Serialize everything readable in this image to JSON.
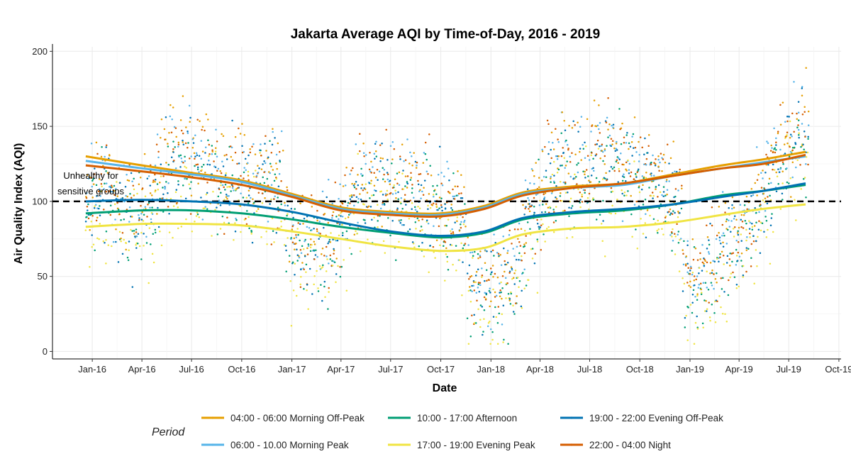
{
  "chart_data": {
    "type": "scatter",
    "title": "Jakarta Average AQI by Time-of-Day, 2016 - 2019",
    "xlabel": "Date",
    "ylabel": "Air Quality Index (AQI)",
    "xlim": [
      "2015-10-20",
      "2019-10-05"
    ],
    "ylim": [
      -5,
      203
    ],
    "x_ticks": [
      {
        "date": "2016-01-01",
        "label": "Jan-16"
      },
      {
        "date": "2016-04-01",
        "label": "Apr-16"
      },
      {
        "date": "2016-07-01",
        "label": "Jul-16"
      },
      {
        "date": "2016-10-01",
        "label": "Oct-16"
      },
      {
        "date": "2017-01-01",
        "label": "Jan-17"
      },
      {
        "date": "2017-04-01",
        "label": "Apr-17"
      },
      {
        "date": "2017-07-01",
        "label": "Jul-17"
      },
      {
        "date": "2017-10-01",
        "label": "Oct-17"
      },
      {
        "date": "2018-01-01",
        "label": "Jan-18"
      },
      {
        "date": "2018-04-01",
        "label": "Apr-18"
      },
      {
        "date": "2018-07-01",
        "label": "Jul-18"
      },
      {
        "date": "2018-10-01",
        "label": "Oct-18"
      },
      {
        "date": "2019-01-01",
        "label": "Jan-19"
      },
      {
        "date": "2019-04-01",
        "label": "Apr-19"
      },
      {
        "date": "2019-07-01",
        "label": "Jul-19"
      },
      {
        "date": "2019-10-01",
        "label": "Oct-19"
      }
    ],
    "y_ticks": [
      0,
      50,
      100,
      150,
      200
    ],
    "grid": true,
    "reference_line": {
      "y": 100,
      "style": "dashed",
      "label": "Unhealthy for sensitive groups"
    },
    "legend": {
      "title": "Period",
      "position": "bottom"
    },
    "series": [
      {
        "name": "04:00 - 06:00 Morning Off-Peak",
        "color": "#E69F00",
        "trend": [
          [
            "2015-12-20",
            130
          ],
          [
            "2016-04-01",
            124
          ],
          [
            "2016-07-01",
            119
          ],
          [
            "2016-10-01",
            114
          ],
          [
            "2017-01-01",
            105
          ],
          [
            "2017-04-01",
            96
          ],
          [
            "2017-07-01",
            93
          ],
          [
            "2017-10-01",
            92
          ],
          [
            "2017-12-20",
            97
          ],
          [
            "2018-03-01",
            106
          ],
          [
            "2018-06-01",
            110
          ],
          [
            "2018-09-01",
            112
          ],
          [
            "2018-12-01",
            118
          ],
          [
            "2019-03-01",
            124
          ],
          [
            "2019-05-15",
            128
          ],
          [
            "2019-08-01",
            133
          ]
        ]
      },
      {
        "name": "06:00 - 10.00 Morning Peak",
        "color": "#56B4E9",
        "trend": [
          [
            "2015-12-20",
            127
          ],
          [
            "2016-04-01",
            122
          ],
          [
            "2016-07-01",
            118
          ],
          [
            "2016-10-01",
            113
          ],
          [
            "2017-01-01",
            104
          ],
          [
            "2017-04-01",
            95
          ],
          [
            "2017-07-01",
            92
          ],
          [
            "2017-10-01",
            91
          ],
          [
            "2017-12-20",
            96
          ],
          [
            "2018-03-01",
            105
          ],
          [
            "2018-06-01",
            109
          ],
          [
            "2018-09-01",
            111
          ],
          [
            "2018-12-01",
            117
          ],
          [
            "2019-03-01",
            122
          ],
          [
            "2019-05-15",
            126
          ],
          [
            "2019-08-01",
            130
          ]
        ]
      },
      {
        "name": "10:00 - 17:00 Afternoon",
        "color": "#009E73",
        "trend": [
          [
            "2015-12-20",
            92
          ],
          [
            "2016-04-01",
            94
          ],
          [
            "2016-07-01",
            94
          ],
          [
            "2016-10-01",
            92
          ],
          [
            "2017-01-01",
            88
          ],
          [
            "2017-04-01",
            83
          ],
          [
            "2017-07-01",
            79
          ],
          [
            "2017-10-01",
            76
          ],
          [
            "2017-12-20",
            79
          ],
          [
            "2018-03-01",
            88
          ],
          [
            "2018-06-01",
            92
          ],
          [
            "2018-09-01",
            94
          ],
          [
            "2018-12-01",
            98
          ],
          [
            "2019-03-01",
            104
          ],
          [
            "2019-05-15",
            107
          ],
          [
            "2019-08-01",
            111
          ]
        ]
      },
      {
        "name": "17:00 - 19:00 Evening Peak",
        "color": "#F0E442",
        "trend": [
          [
            "2015-12-20",
            83
          ],
          [
            "2016-04-01",
            85
          ],
          [
            "2016-07-01",
            85
          ],
          [
            "2016-10-01",
            84
          ],
          [
            "2017-01-01",
            80
          ],
          [
            "2017-04-01",
            75
          ],
          [
            "2017-07-01",
            70
          ],
          [
            "2017-10-01",
            67
          ],
          [
            "2017-12-20",
            69
          ],
          [
            "2018-03-01",
            78
          ],
          [
            "2018-06-01",
            82
          ],
          [
            "2018-09-01",
            83
          ],
          [
            "2018-12-01",
            86
          ],
          [
            "2019-03-01",
            91
          ],
          [
            "2019-05-15",
            95
          ],
          [
            "2019-08-01",
            98
          ]
        ]
      },
      {
        "name": "19:00 - 22:00 Evening Off-Peak",
        "color": "#0072B2",
        "trend": [
          [
            "2015-12-20",
            100
          ],
          [
            "2016-04-01",
            101
          ],
          [
            "2016-07-01",
            100
          ],
          [
            "2016-10-01",
            98
          ],
          [
            "2017-01-01",
            93
          ],
          [
            "2017-04-01",
            86
          ],
          [
            "2017-07-01",
            80
          ],
          [
            "2017-10-01",
            77
          ],
          [
            "2017-12-20",
            80
          ],
          [
            "2018-03-01",
            89
          ],
          [
            "2018-06-01",
            93
          ],
          [
            "2018-09-01",
            95
          ],
          [
            "2018-12-01",
            98
          ],
          [
            "2019-03-01",
            103
          ],
          [
            "2019-05-15",
            107
          ],
          [
            "2019-08-01",
            112
          ]
        ]
      },
      {
        "name": "22:00 - 04:00 Night",
        "color": "#D55E00",
        "trend": [
          [
            "2015-12-20",
            124
          ],
          [
            "2016-04-01",
            120
          ],
          [
            "2016-07-01",
            116
          ],
          [
            "2016-10-01",
            111
          ],
          [
            "2017-01-01",
            103
          ],
          [
            "2017-04-01",
            94
          ],
          [
            "2017-07-01",
            91
          ],
          [
            "2017-10-01",
            90
          ],
          [
            "2017-12-20",
            95
          ],
          [
            "2018-03-01",
            104
          ],
          [
            "2018-06-01",
            109
          ],
          [
            "2018-09-01",
            112
          ],
          [
            "2018-12-01",
            117
          ],
          [
            "2019-03-01",
            122
          ],
          [
            "2019-05-15",
            125
          ],
          [
            "2019-08-01",
            131
          ]
        ]
      }
    ],
    "segments": [
      [
        "2015-12-20",
        "2016-12-15"
      ],
      [
        "2016-12-20",
        "2017-11-15"
      ],
      [
        "2017-11-20",
        "2018-12-15"
      ],
      [
        "2018-12-20",
        "2019-08-05"
      ]
    ],
    "monthly_center": [
      [
        "2015-12-20",
        100
      ],
      [
        "2016-01-15",
        110
      ],
      [
        "2016-02-15",
        95
      ],
      [
        "2016-03-15",
        90
      ],
      [
        "2016-04-15",
        100
      ],
      [
        "2016-05-15",
        120
      ],
      [
        "2016-06-15",
        130
      ],
      [
        "2016-07-15",
        125
      ],
      [
        "2016-08-15",
        120
      ],
      [
        "2016-09-15",
        115
      ],
      [
        "2016-10-15",
        110
      ],
      [
        "2016-11-15",
        120
      ],
      [
        "2016-12-15",
        110
      ],
      [
        "2016-12-20",
        85
      ],
      [
        "2017-01-15",
        70
      ],
      [
        "2017-02-15",
        75
      ],
      [
        "2017-03-15",
        70
      ],
      [
        "2017-04-15",
        95
      ],
      [
        "2017-05-15",
        110
      ],
      [
        "2017-06-15",
        115
      ],
      [
        "2017-07-15",
        105
      ],
      [
        "2017-08-15",
        110
      ],
      [
        "2017-09-15",
        100
      ],
      [
        "2017-10-15",
        95
      ],
      [
        "2017-11-15",
        85
      ],
      [
        "2017-11-20",
        50
      ],
      [
        "2017-12-15",
        45
      ],
      [
        "2018-01-15",
        45
      ],
      [
        "2018-02-15",
        60
      ],
      [
        "2018-03-15",
        90
      ],
      [
        "2018-04-15",
        115
      ],
      [
        "2018-05-15",
        125
      ],
      [
        "2018-06-15",
        125
      ],
      [
        "2018-07-15",
        130
      ],
      [
        "2018-08-15",
        130
      ],
      [
        "2018-09-15",
        120
      ],
      [
        "2018-10-15",
        115
      ],
      [
        "2018-11-15",
        110
      ],
      [
        "2018-12-15",
        100
      ],
      [
        "2018-12-20",
        55
      ],
      [
        "2019-01-15",
        45
      ],
      [
        "2019-02-15",
        60
      ],
      [
        "2019-03-15",
        75
      ],
      [
        "2019-04-15",
        80
      ],
      [
        "2019-05-15",
        110
      ],
      [
        "2019-06-15",
        130
      ],
      [
        "2019-07-15",
        145
      ],
      [
        "2019-08-05",
        145
      ]
    ],
    "spread": 30
  }
}
